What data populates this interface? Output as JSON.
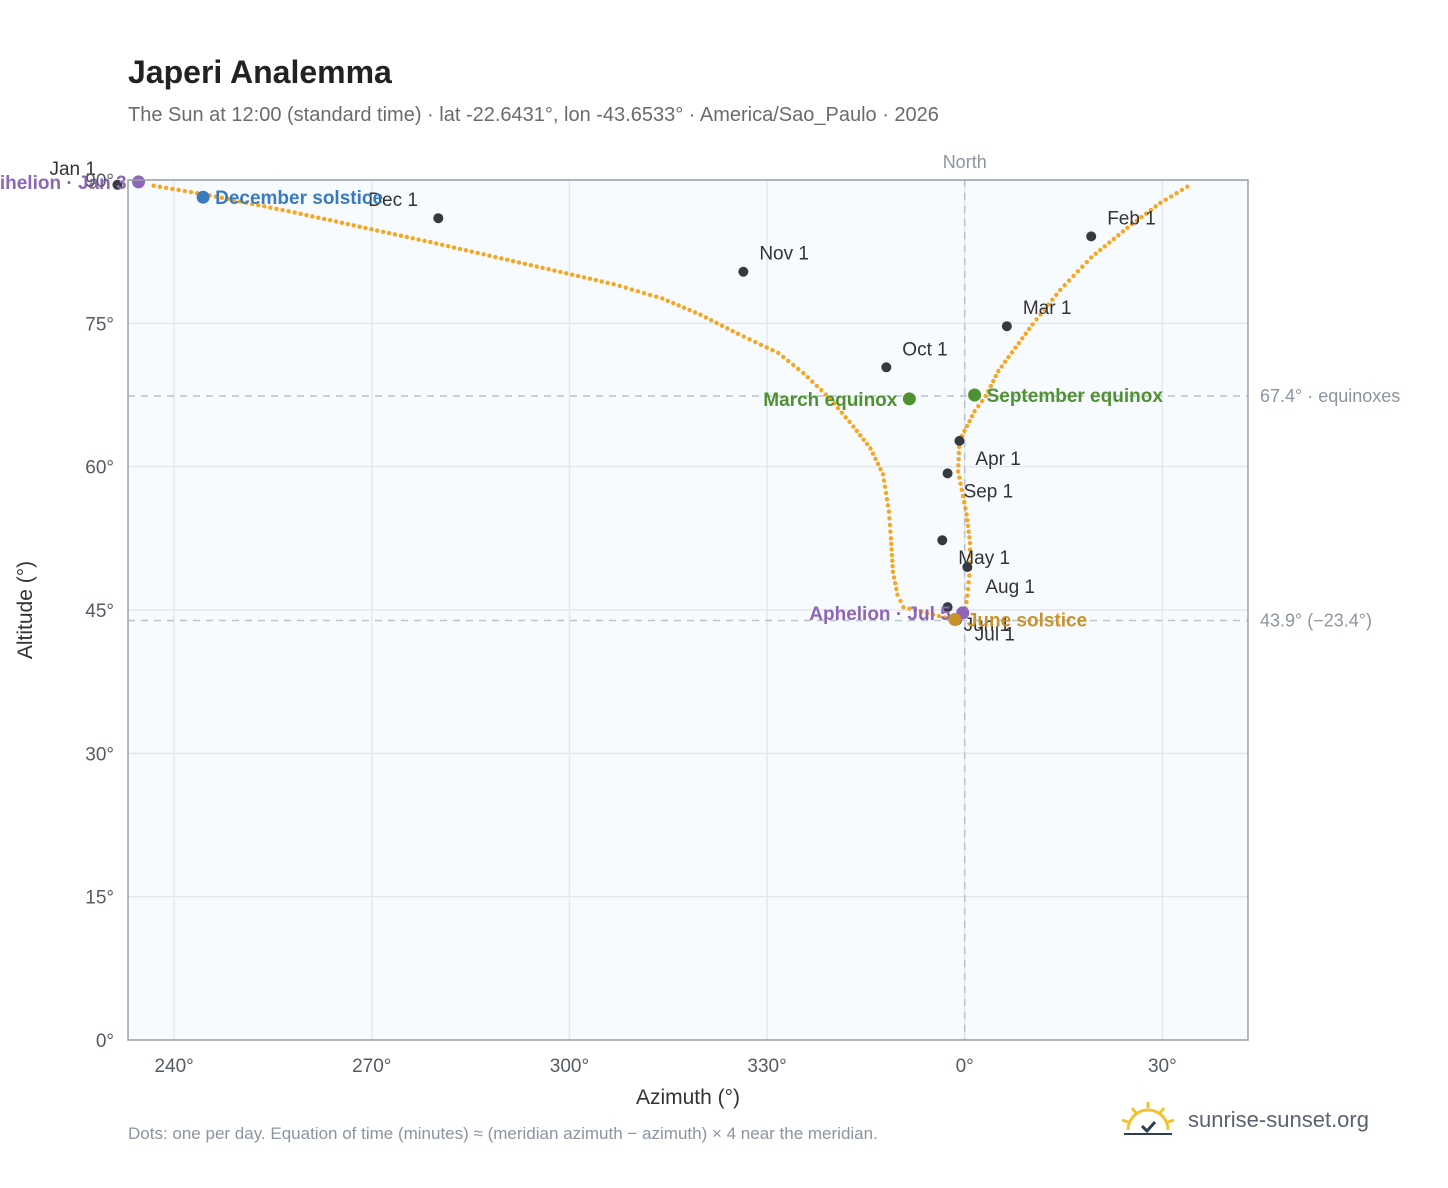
{
  "title": "Japeri Analemma",
  "subtitle": "The Sun at 12:00 (standard time) · lat -22.6431°, lon -43.6533° · America/Sao_Paulo · 2026",
  "footer_note": "Dots: one per day. Equation of time (minutes) ≈ (meridian azimuth − azimuth) × 4 near the meridian.",
  "brand": {
    "name": "sunrise-sunset.org",
    "icon": "sun-logo-icon"
  },
  "colors": {
    "curve": "#f5a623",
    "month_dot": "#333a40",
    "perihelion": "#8e66b8",
    "aphelion": "#8e66b8",
    "december_solstice": "#3a7bbf",
    "june_solstice": "#c9922a",
    "equinox": "#4e9132",
    "plot_bg": "#f8fbfd",
    "grid": "#e3e8ee",
    "ref_line": "#b9c3cc"
  },
  "chart_data": {
    "type": "scatter",
    "title": "Japeri Analemma",
    "xlabel": "Azimuth (°)",
    "ylabel": "Altitude (°)",
    "xlim": [
      -127,
      43
    ],
    "ylim": [
      0,
      90
    ],
    "x_tick_values": [
      -120,
      -90,
      -60,
      -30,
      0,
      30
    ],
    "x_tick_labels": [
      "240°",
      "270°",
      "300°",
      "330°",
      "0°",
      "30°"
    ],
    "y_tick_values": [
      0,
      15,
      30,
      45,
      60,
      75,
      90
    ],
    "y_tick_labels": [
      "0°",
      "15°",
      "30°",
      "45°",
      "60°",
      "75°",
      "90°"
    ],
    "north_label": "North",
    "north_azimuth": 0,
    "reference_lines": [
      {
        "altitude": 67.4,
        "label": "67.4° · equinoxes"
      },
      {
        "altitude": 43.9,
        "label": "43.9° (−23.4°)"
      }
    ],
    "series": [
      {
        "points": [
          [
            -123.1,
            89.4
          ],
          [
            -114.6,
            88.4
          ],
          [
            -101.7,
            86.6
          ],
          [
            -81.1,
            83.5
          ],
          [
            -53.3,
            79.1
          ],
          [
            -45.9,
            77.6
          ],
          [
            -40.1,
            75.9
          ],
          [
            -34.4,
            73.9
          ],
          [
            -28.3,
            71.9
          ],
          [
            -24.5,
            69.8
          ],
          [
            -20.4,
            67.1
          ],
          [
            -16.9,
            64.2
          ],
          [
            -14.3,
            61.9
          ],
          [
            -12.4,
            59.2
          ],
          [
            -11.5,
            55.3
          ],
          [
            -11.2,
            52.5
          ],
          [
            -10.9,
            49.0
          ],
          [
            -10.2,
            46.6
          ],
          [
            -9.3,
            45.3
          ],
          [
            -1.2,
            43.9
          ],
          [
            0,
            44.5
          ],
          [
            0.4,
            46.5
          ],
          [
            0.8,
            49.3
          ],
          [
            0.8,
            52.0
          ],
          [
            0.3,
            55.0
          ],
          [
            -1.0,
            59.5
          ],
          [
            -0.8,
            62.7
          ],
          [
            1.5,
            65.8
          ],
          [
            3.2,
            67.4
          ],
          [
            5.1,
            70.0
          ],
          [
            10.3,
            74.9
          ],
          [
            14.5,
            78.5
          ],
          [
            19.2,
            81.9
          ],
          [
            24.7,
            85.0
          ],
          [
            29.7,
            87.6
          ],
          [
            33.8,
            89.3
          ]
        ]
      }
    ],
    "month_markers": [
      {
        "label": "Jan 1",
        "az": -128.6,
        "alt": 89.5
      },
      {
        "label": "Feb 1",
        "az": 19.2,
        "alt": 84.1
      },
      {
        "label": "Mar 1",
        "az": 6.4,
        "alt": 74.7
      },
      {
        "label": "Apr 1",
        "az": -0.8,
        "alt": 62.7
      },
      {
        "label": "May 1",
        "az": -3.4,
        "alt": 52.3
      },
      {
        "label": "Jun 1",
        "az": -2.6,
        "alt": 45.3
      },
      {
        "label": "Jul 1",
        "az": -1.2,
        "alt": 43.9
      },
      {
        "label": "Aug 1",
        "az": 0.4,
        "alt": 49.5
      },
      {
        "label": "Sep 1",
        "az": -2.6,
        "alt": 59.3
      },
      {
        "label": "Oct 1",
        "az": -11.9,
        "alt": 70.4
      },
      {
        "label": "Nov 1",
        "az": -33.6,
        "alt": 80.4
      },
      {
        "label": "Dec 1",
        "az": -79.9,
        "alt": 86.0
      }
    ],
    "events": [
      {
        "label": "Perihelion · Jan 3",
        "az": -125.4,
        "alt": 89.8,
        "color_key": "perihelion",
        "anchor": "end"
      },
      {
        "label": "December solstice",
        "az": -115.6,
        "alt": 88.2,
        "color_key": "december_solstice",
        "anchor": "start"
      },
      {
        "label": "March equinox",
        "az": -8.4,
        "alt": 67.1,
        "color_key": "equinox",
        "anchor": "end"
      },
      {
        "label": "September equinox",
        "az": 1.5,
        "alt": 67.5,
        "color_key": "equinox",
        "anchor": "start"
      },
      {
        "label": "Aphelion · Jul 5",
        "az": -0.3,
        "alt": 44.7,
        "color_key": "aphelion",
        "anchor": "end"
      },
      {
        "label": "June solstice",
        "az": -1.5,
        "alt": 44.0,
        "color_key": "june_solstice",
        "anchor": "start"
      }
    ]
  }
}
